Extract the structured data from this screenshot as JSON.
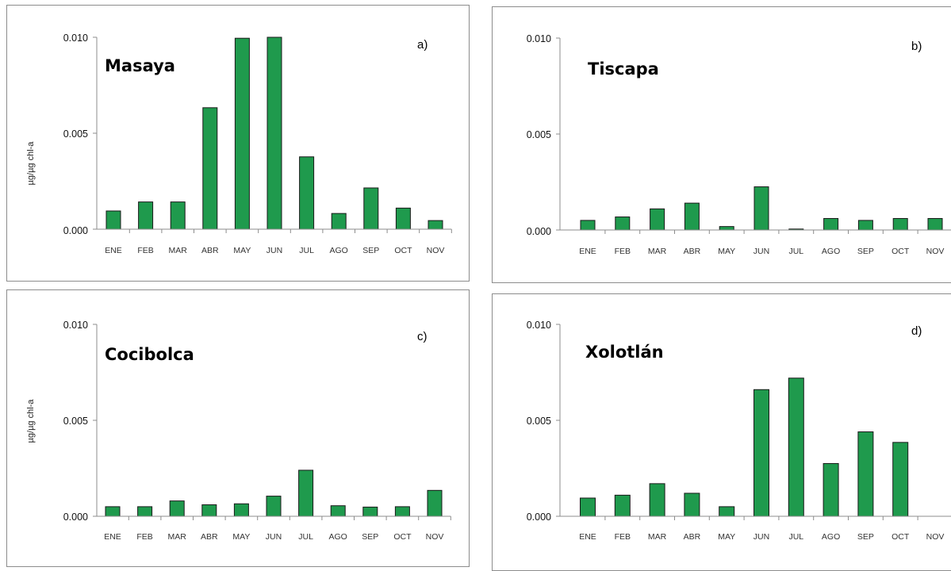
{
  "colors": {
    "bar": "#1f9a4d",
    "axis": "#8c8c8c"
  },
  "chart_data": [
    {
      "type": "bar",
      "panel_letter": "a)",
      "title": "Masaya",
      "ylabel": "µg/µg chl-a",
      "ylim": [
        0,
        0.01
      ],
      "yticks": [
        "0.010",
        "0.005",
        "0.000"
      ],
      "categories": [
        "ENE",
        "FEB",
        "MAR",
        "ABR",
        "MAY",
        "JUN",
        "JUL",
        "AGO",
        "SEP",
        "OCT",
        "NOV"
      ],
      "values": [
        0.00095,
        0.00142,
        0.00142,
        0.00633,
        0.00995,
        0.01,
        0.00377,
        0.00082,
        0.00215,
        0.0011,
        0.00045
      ]
    },
    {
      "type": "bar",
      "panel_letter": "b)",
      "title": "Tiscapa",
      "ylabel": "",
      "ylim": [
        0,
        0.01
      ],
      "yticks": [
        "0.010",
        "0.005",
        "0.000"
      ],
      "categories": [
        "ENE",
        "FEB",
        "MAR",
        "ABR",
        "MAY",
        "JUN",
        "JUL",
        "AGO",
        "SEP",
        "OCT",
        "NOV"
      ],
      "values": [
        0.0005,
        0.00068,
        0.0011,
        0.0014,
        0.00018,
        0.00225,
        5e-05,
        0.0006,
        0.0005,
        0.0006,
        0.0006
      ]
    },
    {
      "type": "bar",
      "panel_letter": "c)",
      "title": "Cocibolca",
      "ylabel": "µg/µg chl-a",
      "ylim": [
        0,
        0.01
      ],
      "yticks": [
        "0.010",
        "0.005",
        "0.000"
      ],
      "categories": [
        "ENE",
        "FEB",
        "MAR",
        "ABR",
        "MAY",
        "JUN",
        "JUL",
        "AGO",
        "SEP",
        "OCT",
        "NOV"
      ],
      "values": [
        0.0005,
        0.0005,
        0.0008,
        0.0006,
        0.00065,
        0.00105,
        0.0024,
        0.00055,
        0.00048,
        0.0005,
        0.00135
      ]
    },
    {
      "type": "bar",
      "panel_letter": "d)",
      "title": "Xolotlán",
      "ylabel": "",
      "ylim": [
        0,
        0.01
      ],
      "yticks": [
        "0.010",
        "0.005",
        "0.000"
      ],
      "categories": [
        "ENE",
        "FEB",
        "MAR",
        "ABR",
        "MAY",
        "JUN",
        "JUL",
        "AGO",
        "SEP",
        "OCT",
        "NOV"
      ],
      "values": [
        0.00095,
        0.0011,
        0.0017,
        0.0012,
        0.0005,
        0.0066,
        0.0072,
        0.00275,
        0.0044,
        0.00385,
        0
      ]
    }
  ]
}
